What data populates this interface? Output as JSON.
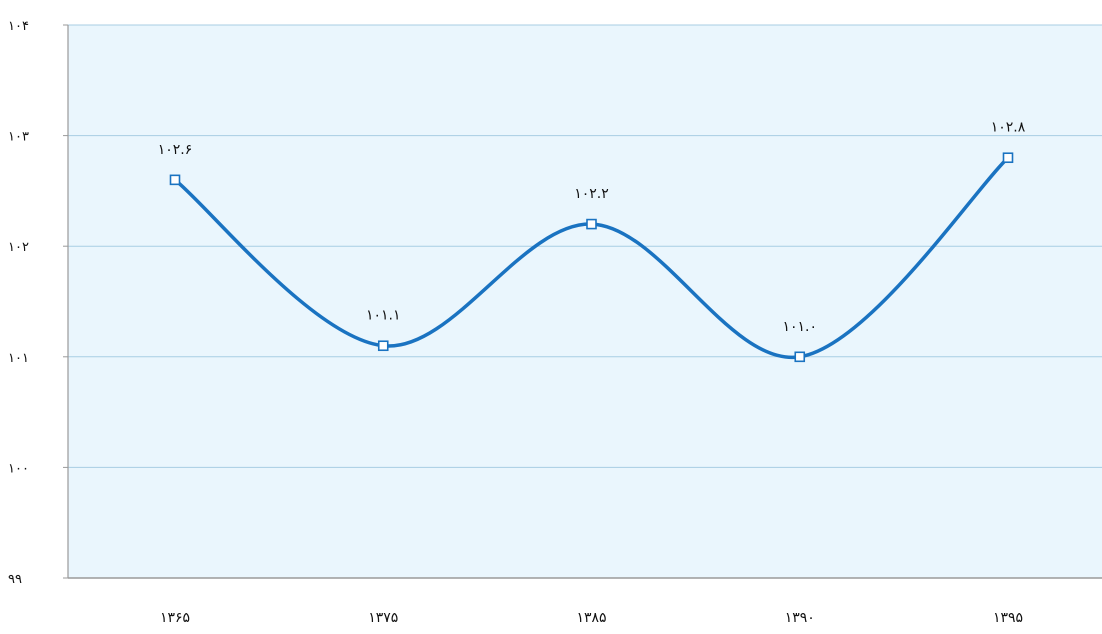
{
  "chart_data": {
    "type": "line",
    "title": "",
    "xlabel": "",
    "ylabel": "",
    "categories": [
      "۱۳۶۵",
      "۱۳۷۵",
      "۱۳۸۵",
      "۱۳۹۰",
      "۱۳۹۵"
    ],
    "series": [
      {
        "values": [
          102.6,
          101.1,
          102.2,
          101.0,
          102.8
        ],
        "data_labels": [
          "۱۰۲.۶",
          "۱۰۱.۱",
          "۱۰۲.۲",
          "۱۰۱.۰",
          "۱۰۲.۸"
        ],
        "smooth": true,
        "marker": "square-outline",
        "color": "#1a73c1"
      }
    ],
    "ylim": [
      99,
      104
    ],
    "yticks": [
      99,
      100,
      101,
      102,
      103,
      104
    ],
    "ytick_labels": [
      "۹۹",
      "۱۰۰",
      "۱۰۱",
      "۱۰۲",
      "۱۰۳",
      "۱۰۴"
    ],
    "grid": true,
    "legend": "none",
    "colors": {
      "plot_background": "#eaf6fd",
      "gridline": "#a8cde3",
      "axis": "#9a9a9a",
      "line": "#1a73c1"
    }
  }
}
